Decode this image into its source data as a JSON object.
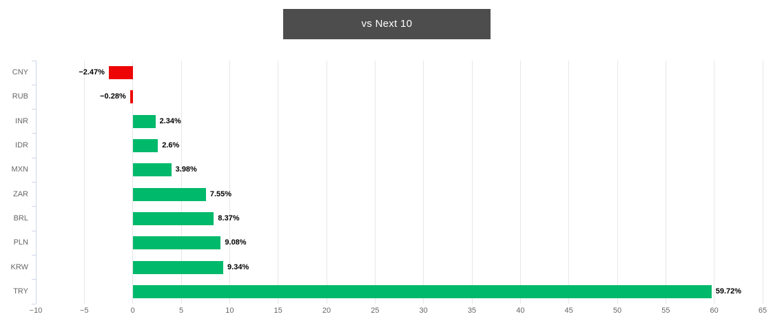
{
  "title": "vs Next 10",
  "colors": {
    "positive_bar": "#00b96b",
    "negative_bar": "#ed0505",
    "title_bg": "#4d4d4d",
    "title_text": "#ffffff",
    "grid": "#e6e6e6",
    "axis_line": "#ccd6eb",
    "tick_label": "#666666",
    "category_label": "#666666",
    "value_label": "#000000",
    "background": "#ffffff"
  },
  "chart_data": {
    "type": "bar",
    "orientation": "horizontal",
    "title": "vs Next 10",
    "categories": [
      "CNY",
      "RUB",
      "INR",
      "IDR",
      "MXN",
      "ZAR",
      "BRL",
      "PLN",
      "KRW",
      "TRY"
    ],
    "values": [
      -2.47,
      -0.28,
      2.34,
      2.6,
      3.98,
      7.55,
      8.37,
      9.08,
      9.34,
      59.72
    ],
    "value_labels": [
      "−2.47%",
      "−0.28%",
      "2.34%",
      "2.6%",
      "3.98%",
      "7.55%",
      "8.37%",
      "9.08%",
      "9.34%",
      "59.72%"
    ],
    "xlim": [
      -10,
      65
    ],
    "x_ticks": [
      -10,
      -5,
      0,
      5,
      10,
      15,
      20,
      25,
      30,
      35,
      40,
      45,
      50,
      55,
      60,
      65
    ],
    "x_tick_labels": [
      "−10",
      "−5",
      "0",
      "5",
      "10",
      "15",
      "20",
      "25",
      "30",
      "35",
      "40",
      "45",
      "50",
      "55",
      "60",
      "65"
    ],
    "xlabel": "",
    "ylabel": "",
    "grid": true,
    "legend": false
  }
}
